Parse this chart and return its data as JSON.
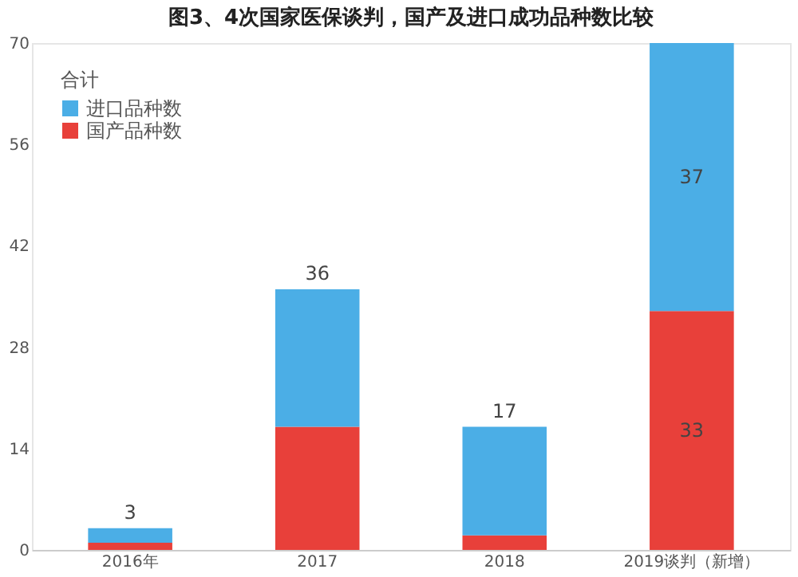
{
  "chart_data": {
    "type": "bar",
    "title": "图3、4次国家医保谈判，国产及进口成功品种数比较",
    "categories": [
      "2016年",
      "2017",
      "2018",
      "2019谈判（新增）"
    ],
    "stacked": true,
    "legend_title": "合计",
    "series": [
      {
        "name": "国产品种数",
        "color": "#e8403a",
        "values": [
          1,
          17,
          2,
          33
        ],
        "value_labels": [
          null,
          null,
          null,
          "33"
        ]
      },
      {
        "name": "进口品种数",
        "color": "#4baee6",
        "values": [
          2,
          19,
          15,
          37
        ],
        "value_labels": [
          null,
          null,
          null,
          "37"
        ]
      }
    ],
    "totals": [
      "3",
      "36",
      "17",
      null
    ],
    "ylim": [
      0,
      70
    ],
    "yticks": [
      0,
      14,
      28,
      42,
      56,
      70
    ],
    "grid": false,
    "legend": "top left"
  }
}
